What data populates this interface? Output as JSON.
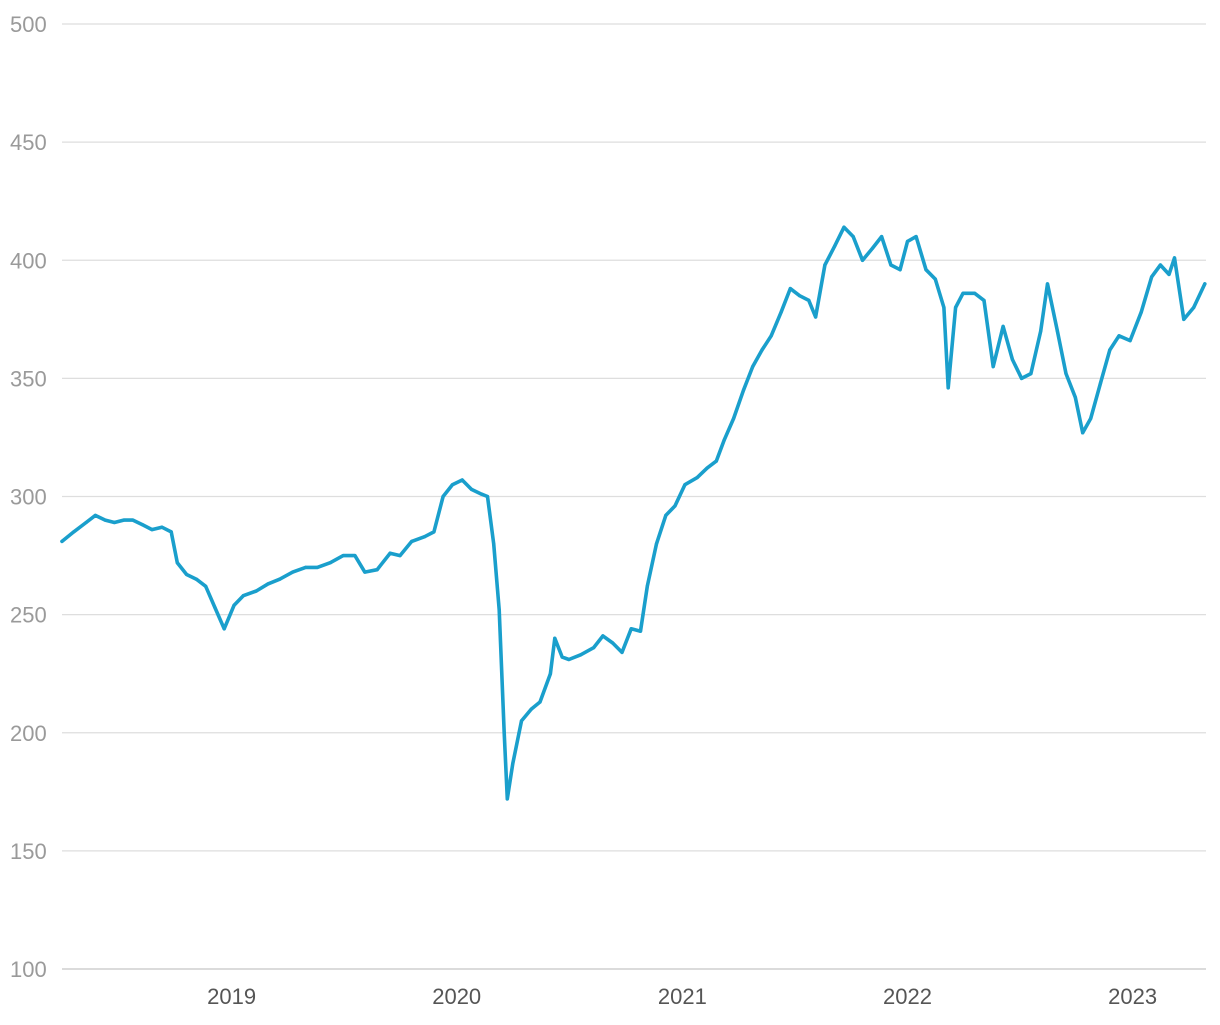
{
  "chart_data": {
    "type": "line",
    "title": "",
    "xlabel": "",
    "ylabel": "",
    "ylim": [
      100,
      500
    ],
    "xlim": [
      "2018-04-01",
      "2023-04-30"
    ],
    "y_ticks": [
      "100",
      "150",
      "200",
      "250",
      "300",
      "350",
      "400",
      "450",
      "500"
    ],
    "x_ticks": [
      {
        "label": "2019",
        "date": "2019-01-01"
      },
      {
        "label": "2020",
        "date": "2020-01-01"
      },
      {
        "label": "2021",
        "date": "2021-01-01"
      },
      {
        "label": "2022",
        "date": "2022-01-01"
      },
      {
        "label": "2023",
        "date": "2023-01-01"
      }
    ],
    "grid": true,
    "legend": "none",
    "series": [
      {
        "color": "#1a9fcc",
        "points": [
          [
            "2018-04-01",
            281
          ],
          [
            "2018-04-20",
            285
          ],
          [
            "2018-05-10",
            289
          ],
          [
            "2018-05-25",
            292
          ],
          [
            "2018-06-10",
            290
          ],
          [
            "2018-06-25",
            289
          ],
          [
            "2018-07-10",
            290
          ],
          [
            "2018-07-25",
            290
          ],
          [
            "2018-08-10",
            288
          ],
          [
            "2018-08-25",
            286
          ],
          [
            "2018-09-10",
            287
          ],
          [
            "2018-09-25",
            285
          ],
          [
            "2018-10-05",
            272
          ],
          [
            "2018-10-20",
            267
          ],
          [
            "2018-11-05",
            265
          ],
          [
            "2018-11-20",
            262
          ],
          [
            "2018-12-05",
            253
          ],
          [
            "2018-12-20",
            244
          ],
          [
            "2019-01-05",
            254
          ],
          [
            "2019-01-20",
            258
          ],
          [
            "2019-02-10",
            260
          ],
          [
            "2019-03-01",
            263
          ],
          [
            "2019-03-20",
            265
          ],
          [
            "2019-04-10",
            268
          ],
          [
            "2019-05-01",
            270
          ],
          [
            "2019-05-20",
            270
          ],
          [
            "2019-06-10",
            272
          ],
          [
            "2019-07-01",
            275
          ],
          [
            "2019-07-20",
            275
          ],
          [
            "2019-08-05",
            268
          ],
          [
            "2019-08-25",
            269
          ],
          [
            "2019-09-15",
            276
          ],
          [
            "2019-10-01",
            275
          ],
          [
            "2019-10-20",
            281
          ],
          [
            "2019-11-10",
            283
          ],
          [
            "2019-11-25",
            285
          ],
          [
            "2019-12-10",
            300
          ],
          [
            "2019-12-25",
            305
          ],
          [
            "2020-01-10",
            307
          ],
          [
            "2020-01-25",
            303
          ],
          [
            "2020-02-10",
            301
          ],
          [
            "2020-02-20",
            300
          ],
          [
            "2020-03-01",
            280
          ],
          [
            "2020-03-10",
            252
          ],
          [
            "2020-03-18",
            200
          ],
          [
            "2020-03-23",
            172
          ],
          [
            "2020-04-01",
            187
          ],
          [
            "2020-04-15",
            205
          ],
          [
            "2020-05-01",
            210
          ],
          [
            "2020-05-15",
            213
          ],
          [
            "2020-06-01",
            225
          ],
          [
            "2020-06-08",
            240
          ],
          [
            "2020-06-20",
            232
          ],
          [
            "2020-07-01",
            231
          ],
          [
            "2020-07-20",
            233
          ],
          [
            "2020-08-10",
            236
          ],
          [
            "2020-08-25",
            241
          ],
          [
            "2020-09-10",
            238
          ],
          [
            "2020-09-25",
            234
          ],
          [
            "2020-10-10",
            244
          ],
          [
            "2020-10-25",
            243
          ],
          [
            "2020-11-05",
            262
          ],
          [
            "2020-11-20",
            280
          ],
          [
            "2020-12-05",
            292
          ],
          [
            "2020-12-20",
            296
          ],
          [
            "2021-01-05",
            305
          ],
          [
            "2021-01-25",
            308
          ],
          [
            "2021-02-10",
            312
          ],
          [
            "2021-02-25",
            315
          ],
          [
            "2021-03-10",
            324
          ],
          [
            "2021-03-25",
            333
          ],
          [
            "2021-04-10",
            345
          ],
          [
            "2021-04-25",
            355
          ],
          [
            "2021-05-10",
            362
          ],
          [
            "2021-05-25",
            368
          ],
          [
            "2021-06-10",
            378
          ],
          [
            "2021-06-25",
            388
          ],
          [
            "2021-07-10",
            385
          ],
          [
            "2021-07-25",
            383
          ],
          [
            "2021-08-05",
            376
          ],
          [
            "2021-08-20",
            398
          ],
          [
            "2021-09-05",
            406
          ],
          [
            "2021-09-20",
            414
          ],
          [
            "2021-10-05",
            410
          ],
          [
            "2021-10-20",
            400
          ],
          [
            "2021-11-05",
            405
          ],
          [
            "2021-11-20",
            410
          ],
          [
            "2021-12-05",
            398
          ],
          [
            "2021-12-20",
            396
          ],
          [
            "2022-01-01",
            408
          ],
          [
            "2022-01-15",
            410
          ],
          [
            "2022-01-31",
            396
          ],
          [
            "2022-02-15",
            392
          ],
          [
            "2022-03-01",
            380
          ],
          [
            "2022-03-08",
            346
          ],
          [
            "2022-03-20",
            380
          ],
          [
            "2022-04-01",
            386
          ],
          [
            "2022-04-20",
            386
          ],
          [
            "2022-05-05",
            383
          ],
          [
            "2022-05-20",
            355
          ],
          [
            "2022-06-05",
            372
          ],
          [
            "2022-06-20",
            358
          ],
          [
            "2022-07-05",
            350
          ],
          [
            "2022-07-20",
            352
          ],
          [
            "2022-08-05",
            370
          ],
          [
            "2022-08-16",
            390
          ],
          [
            "2022-09-01",
            370
          ],
          [
            "2022-09-15",
            352
          ],
          [
            "2022-09-30",
            342
          ],
          [
            "2022-10-12",
            327
          ],
          [
            "2022-10-25",
            333
          ],
          [
            "2022-11-10",
            348
          ],
          [
            "2022-11-25",
            362
          ],
          [
            "2022-12-10",
            368
          ],
          [
            "2022-12-28",
            366
          ],
          [
            "2023-01-15",
            378
          ],
          [
            "2023-02-01",
            393
          ],
          [
            "2023-02-15",
            398
          ],
          [
            "2023-03-01",
            394
          ],
          [
            "2023-03-10",
            401
          ],
          [
            "2023-03-25",
            375
          ],
          [
            "2023-04-10",
            380
          ],
          [
            "2023-04-28",
            390
          ]
        ]
      }
    ]
  }
}
